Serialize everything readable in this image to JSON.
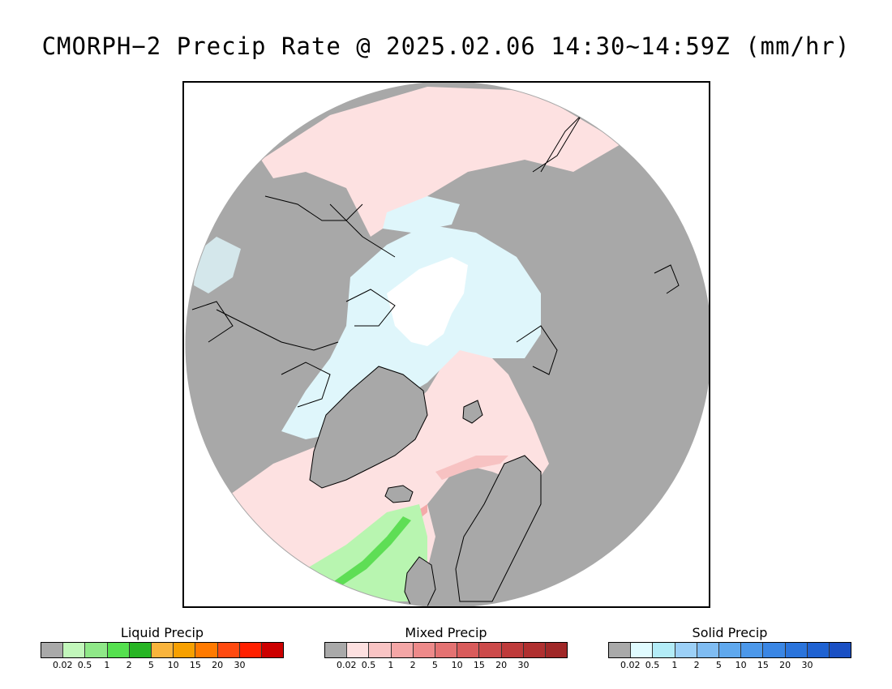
{
  "title": "CMORPH−2 Precip Rate @ 2025.02.06 14:30~14:59Z (mm/hr)",
  "map": {
    "projection": "north polar stereographic",
    "colors": {
      "land_no_precip": "#a8a8a8",
      "ocean_no_data": "#ffffff",
      "coastline": "#000000",
      "light_mixed": "#fde1e1",
      "light_solid": "#dff6fb",
      "heavier_mixed": "#f4a9a9",
      "light_liquid": "#b8f5b0",
      "moderate_liquid": "#5ede55"
    }
  },
  "legends": [
    {
      "title": "Liquid Precip",
      "colors": [
        "#a9a9a9",
        "#c2f7bb",
        "#8fe888",
        "#55e04f",
        "#27b524",
        "#f9b43c",
        "#f7a000",
        "#ff7a00",
        "#ff4a10",
        "#ff2000",
        "#cc0000"
      ],
      "ticks": [
        "0.02",
        "0.5",
        "1",
        "2",
        "5",
        "10",
        "15",
        "20",
        "30"
      ]
    },
    {
      "title": "Mixed Precip",
      "colors": [
        "#a9a9a9",
        "#fde0e0",
        "#f9c4c4",
        "#f4a6a6",
        "#ee8a8a",
        "#e47272",
        "#d95b5b",
        "#cc4a4a",
        "#bf3b3b",
        "#b03030",
        "#a02828"
      ],
      "ticks": [
        "0.02",
        "0.5",
        "1",
        "2",
        "5",
        "10",
        "15",
        "20",
        "30"
      ]
    },
    {
      "title": "Solid Precip",
      "colors": [
        "#a9a9a9",
        "#e0fbff",
        "#b3ecf7",
        "#9cd0f7",
        "#7fbcf2",
        "#5fa8ee",
        "#4c98ea",
        "#3a86e4",
        "#2a74dc",
        "#1f62d2",
        "#1a50c4"
      ],
      "ticks": [
        "0.02",
        "0.5",
        "1",
        "2",
        "5",
        "10",
        "15",
        "20",
        "30"
      ]
    }
  ]
}
